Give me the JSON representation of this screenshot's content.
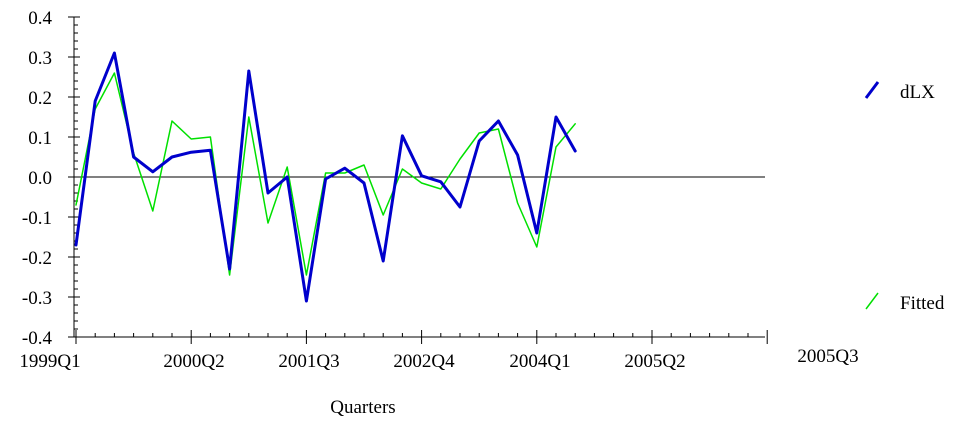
{
  "chart_data": {
    "type": "line",
    "xlabel": "Quarters",
    "ylabel": "",
    "ylim": [
      -0.4,
      0.4
    ],
    "y_ticks": [
      "0.4",
      "0.3",
      "0.2",
      "0.1",
      "0.0",
      "-0.1",
      "-0.2",
      "-0.3",
      "-0.4"
    ],
    "y_tick_values": [
      0.4,
      0.3,
      0.2,
      0.1,
      0.0,
      -0.1,
      -0.2,
      -0.3,
      -0.4
    ],
    "x_ticks": [
      "1999Q1",
      "2000Q2",
      "2001Q3",
      "2002Q4",
      "2004Q1",
      "2005Q2",
      "2005Q3"
    ],
    "zero_line": true,
    "legend_placement": "right",
    "series": [
      {
        "name": "dLX",
        "color": "#0000cc",
        "values": [
          -0.17,
          0.19,
          0.31,
          0.05,
          0.013,
          0.05,
          0.062,
          0.067,
          -0.23,
          0.265,
          -0.04,
          0.0,
          -0.31,
          -0.005,
          0.022,
          -0.015,
          -0.21,
          0.103,
          0.003,
          -0.012,
          -0.075,
          0.09,
          0.14,
          0.055,
          -0.14,
          0.15,
          0.065
        ]
      },
      {
        "name": "Fitted",
        "color": "#00e000",
        "values": [
          -0.07,
          0.17,
          0.26,
          0.06,
          -0.085,
          0.14,
          0.095,
          0.1,
          -0.245,
          0.15,
          -0.115,
          0.025,
          -0.245,
          0.01,
          0.01,
          0.03,
          -0.095,
          0.02,
          -0.015,
          -0.03,
          0.045,
          0.11,
          0.12,
          -0.065,
          -0.175,
          0.075,
          0.133
        ]
      }
    ]
  }
}
